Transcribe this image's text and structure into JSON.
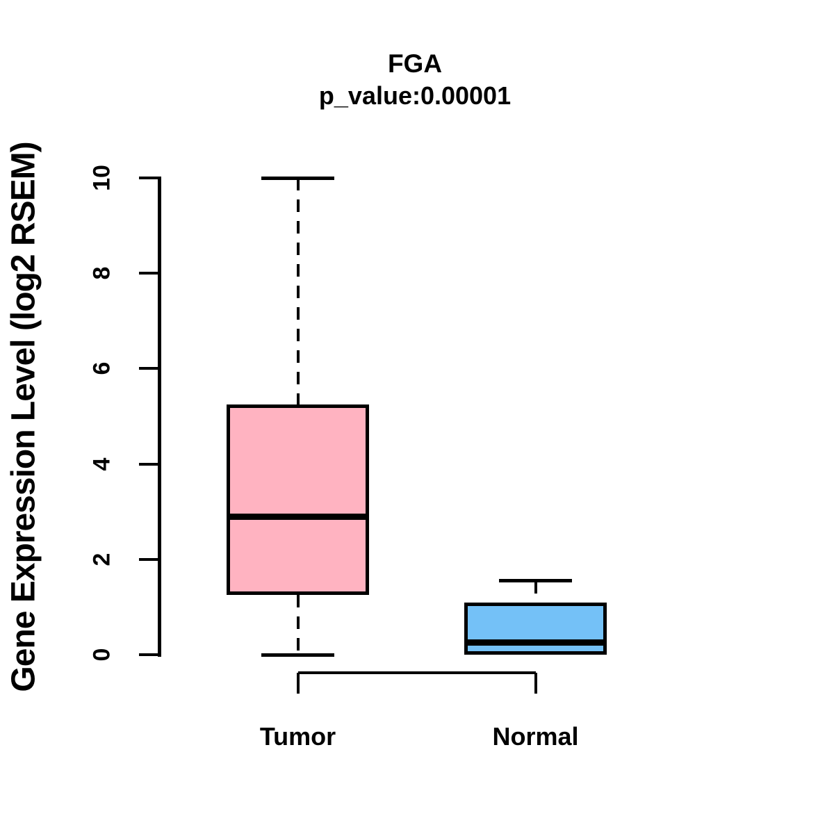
{
  "chart_data": {
    "type": "boxplot",
    "title": "FGA",
    "subtitle": "p_value:0.00001",
    "ylabel": "Gene Expression Level (log2 RSEM)",
    "xlabel": "",
    "ylim": [
      0,
      10
    ],
    "yticks": [
      0,
      2,
      4,
      6,
      8,
      10
    ],
    "categories": [
      "Tumor",
      "Normal"
    ],
    "series": [
      {
        "name": "Tumor",
        "fill_color": "#FFB3C1",
        "whisker_low": 0,
        "q1": 1.25,
        "median": 2.9,
        "q3": 5.25,
        "whisker_high": 10,
        "whisker_style": "dashed"
      },
      {
        "name": "Normal",
        "fill_color": "#74C1F7",
        "whisker_low": 0,
        "q1": 0,
        "median": 0.25,
        "q3": 1.1,
        "whisker_high": 1.55,
        "whisker_style": "dashed"
      }
    ],
    "stroke_color": "#000000",
    "background_color": "#FFFFFF",
    "grid": false,
    "legend": "none",
    "text_weight": "bold"
  }
}
